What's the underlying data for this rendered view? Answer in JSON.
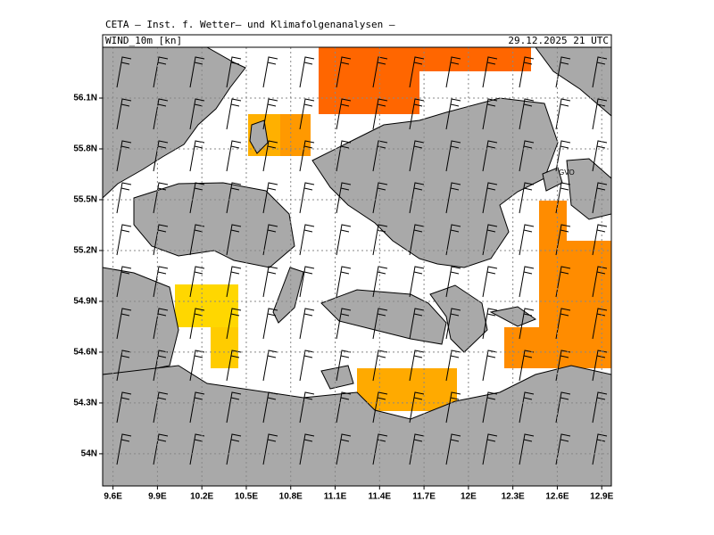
{
  "header": {
    "title": "CETA – Inst. f. Wetter– und Klimafolgenanalysen –",
    "field": "WIND_10m [kn]",
    "time": "29.12.2025 21 UTC"
  },
  "map": {
    "lon_range": [
      9.53,
      12.965
    ],
    "lat_range": [
      53.81,
      56.4
    ],
    "lon_ticks": [
      {
        "value": 9.6,
        "label": "9.6E"
      },
      {
        "value": 9.9,
        "label": "9.9E"
      },
      {
        "value": 10.2,
        "label": "10.2E"
      },
      {
        "value": 10.5,
        "label": "10.5E"
      },
      {
        "value": 10.8,
        "label": "10.8E"
      },
      {
        "value": 11.1,
        "label": "11.1E"
      },
      {
        "value": 11.4,
        "label": "11.4E"
      },
      {
        "value": 11.7,
        "label": "11.7E"
      },
      {
        "value": 12,
        "label": "12E"
      },
      {
        "value": 12.3,
        "label": "12.3E"
      },
      {
        "value": 12.6,
        "label": "12.6E"
      },
      {
        "value": 12.9,
        "label": "12.9E"
      }
    ],
    "lat_ticks": [
      {
        "value": 54,
        "label": "54N"
      },
      {
        "value": 54.3,
        "label": "54.3N"
      },
      {
        "value": 54.6,
        "label": "54.6N"
      },
      {
        "value": 54.9,
        "label": "54.9N"
      },
      {
        "value": 55.2,
        "label": "55.2N"
      },
      {
        "value": 55.5,
        "label": "55.5N"
      },
      {
        "value": 55.8,
        "label": "55.8N"
      },
      {
        "value": 56.1,
        "label": "56.1N"
      }
    ],
    "station_label": "GVO"
  }
}
